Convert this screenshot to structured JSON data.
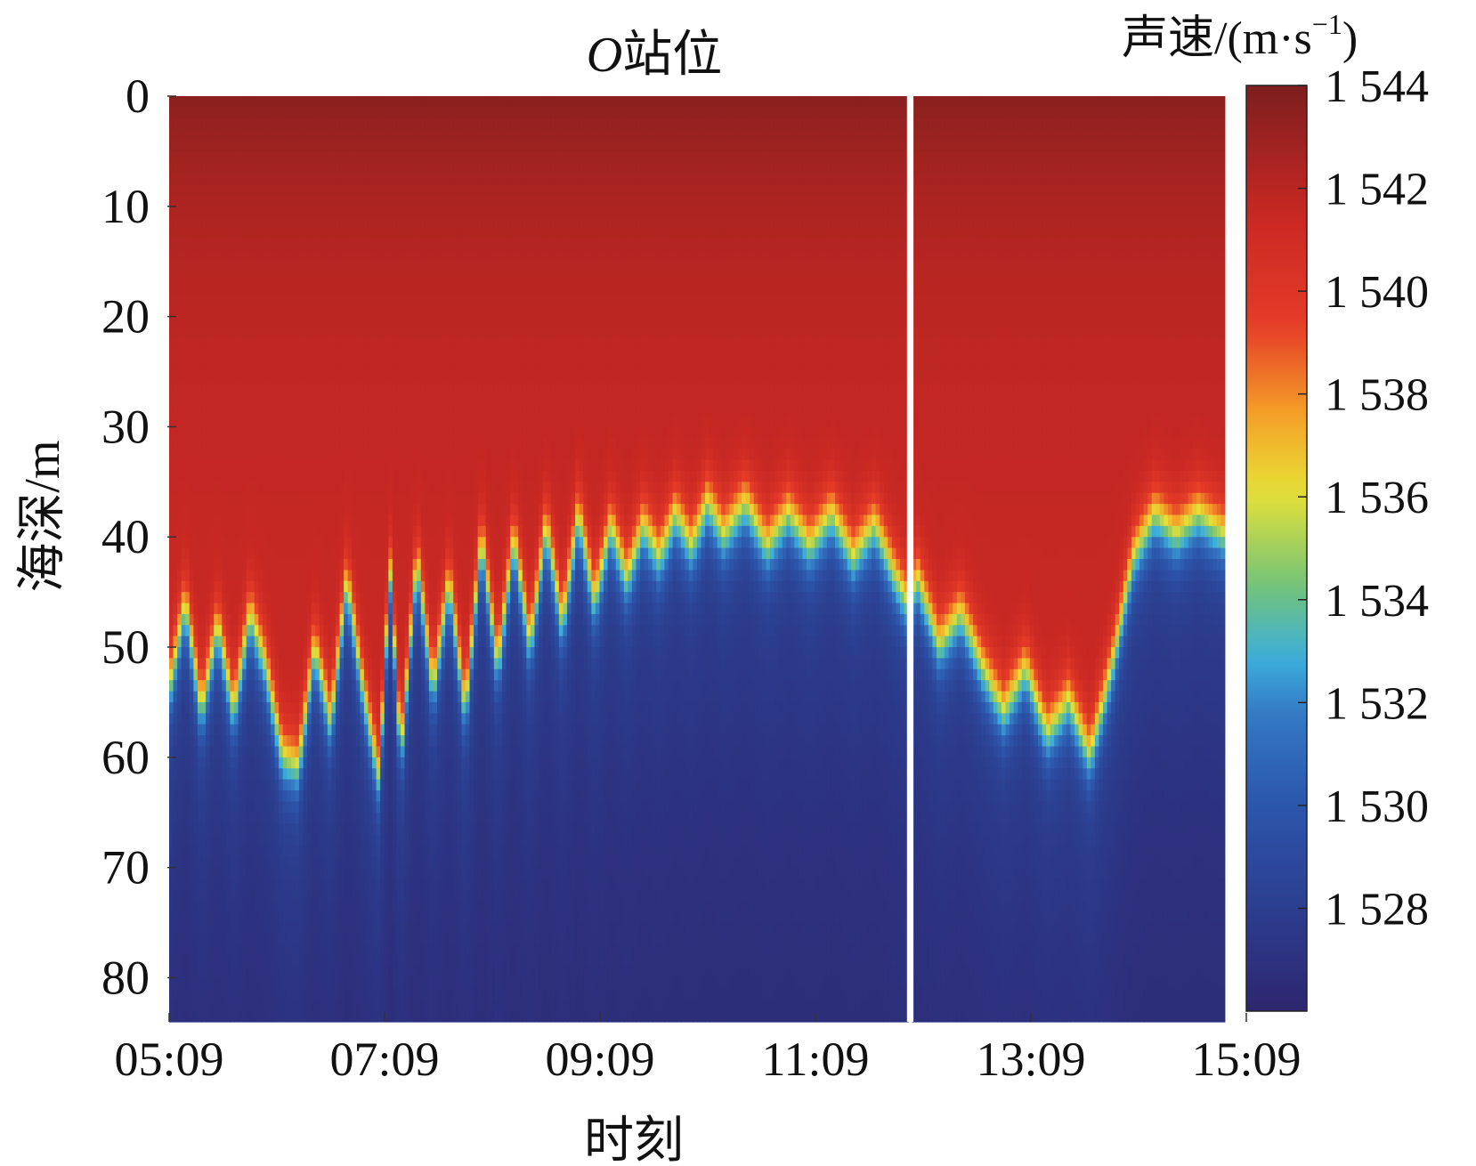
{
  "chart_data": {
    "type": "heatmap",
    "title_italic": "O",
    "title_rest": "站位",
    "xlabel": "时刻",
    "ylabel": "海深/m",
    "x_ticks": [
      "05:09",
      "07:09",
      "09:09",
      "11:09",
      "13:09",
      "15:09"
    ],
    "x_tick_hours": [
      5.15,
      7.15,
      9.15,
      11.15,
      13.15,
      15.15
    ],
    "x_range_hours": [
      5.15,
      14.95
    ],
    "y_ticks": [
      0,
      10,
      20,
      30,
      40,
      50,
      60,
      70,
      80
    ],
    "y_range": [
      0,
      84
    ],
    "y_reversed": true,
    "data_gap_hours": [
      12.0,
      12.06
    ],
    "colorbar": {
      "label_main": "声速/(m·s",
      "label_sup": "−1",
      "label_close": ")",
      "range": [
        1526,
        1544
      ],
      "ticks": [
        1544,
        1542,
        1540,
        1538,
        1536,
        1534,
        1532,
        1530,
        1528
      ],
      "tick_labels": [
        "1 544",
        "1 542",
        "1 540",
        "1 538",
        "1 536",
        "1 534",
        "1 532",
        "1 530",
        "1 528"
      ]
    },
    "surface_speed": 1543.6,
    "bottom_speed": 1526.5,
    "upper_mixed_speed": 1541.5,
    "thermocline_thickness_m": 7,
    "thermocline_depth_profile": {
      "time_hours": [
        5.15,
        5.3,
        5.45,
        5.6,
        5.75,
        5.9,
        6.05,
        6.2,
        6.35,
        6.5,
        6.65,
        6.8,
        6.95,
        7.1,
        7.2,
        7.3,
        7.45,
        7.6,
        7.75,
        7.9,
        8.05,
        8.2,
        8.35,
        8.5,
        8.65,
        8.8,
        8.95,
        9.1,
        9.25,
        9.4,
        9.55,
        9.7,
        9.85,
        10.0,
        10.15,
        10.3,
        10.5,
        10.7,
        10.9,
        11.1,
        11.3,
        11.5,
        11.7,
        11.9,
        12.0,
        12.1,
        12.3,
        12.5,
        12.7,
        12.9,
        13.1,
        13.3,
        13.5,
        13.7,
        13.9,
        14.1,
        14.3,
        14.5,
        14.7,
        14.95
      ],
      "depth_m": [
        54,
        46,
        56,
        48,
        56,
        47,
        52,
        60,
        61,
        50,
        57,
        44,
        54,
        62,
        43,
        60,
        42,
        54,
        44,
        56,
        40,
        52,
        40,
        50,
        39,
        48,
        38,
        46,
        39,
        44,
        39,
        42,
        38,
        41,
        37,
        40,
        37,
        41,
        38,
        41,
        38,
        42,
        39,
        44,
        46,
        44,
        50,
        47,
        52,
        56,
        52,
        58,
        55,
        60,
        52,
        42,
        38,
        40,
        38,
        40
      ]
    }
  }
}
